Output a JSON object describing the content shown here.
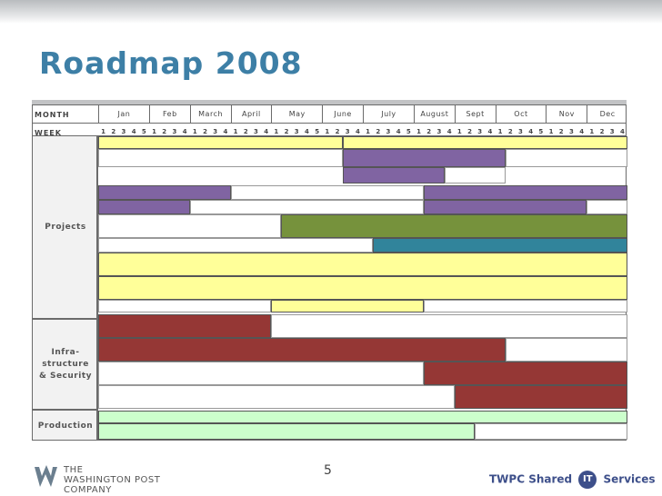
{
  "slide": {
    "title": "Roadmap 2008",
    "page_number": "5"
  },
  "header": {
    "month_label": "MONTH",
    "week_label": "WEEK",
    "months": [
      {
        "name": "Jan",
        "weeks": 5
      },
      {
        "name": "Feb",
        "weeks": 4
      },
      {
        "name": "March",
        "weeks": 4
      },
      {
        "name": "April",
        "weeks": 4
      },
      {
        "name": "May",
        "weeks": 5
      },
      {
        "name": "June",
        "weeks": 4
      },
      {
        "name": "July",
        "weeks": 5
      },
      {
        "name": "August",
        "weeks": 4
      },
      {
        "name": "Sept",
        "weeks": 4
      },
      {
        "name": "Oct",
        "weeks": 5
      },
      {
        "name": "Nov",
        "weeks": 4
      },
      {
        "name": "Dec",
        "weeks": 4
      }
    ]
  },
  "sections": [
    {
      "label": "Projects",
      "rows": 12
    },
    {
      "label": "Infra-\nstructure\n& Security",
      "rows": 6
    },
    {
      "label": "Production",
      "rows": 2
    }
  ],
  "colors": {
    "yellow": "#ffff99",
    "purple": "#8064a2",
    "green": "#76923c",
    "teal": "#31849b",
    "red": "#953735",
    "lightgreen": "#ccffcc",
    "white": "#ffffff"
  },
  "bars": [
    {
      "row": 0,
      "start_week": 1,
      "end_week": 24,
      "color": "yellow"
    },
    {
      "row": 0,
      "start_week": 25,
      "end_week": 52,
      "color": "yellow"
    },
    {
      "row": 1,
      "start_week": 1,
      "end_week": 24,
      "color": "white"
    },
    {
      "row": 1,
      "start_week": 25,
      "end_week": 40,
      "color": "purple"
    },
    {
      "row": 1,
      "start_week": 41,
      "end_week": 52,
      "color": "white"
    },
    {
      "row": 2,
      "start_week": 25,
      "end_week": 34,
      "color": "purple"
    },
    {
      "row": 2,
      "start_week": 35,
      "end_week": 40,
      "color": "white"
    },
    {
      "row": 3,
      "start_week": 1,
      "end_week": 13,
      "color": "purple"
    },
    {
      "row": 3,
      "start_week": 14,
      "end_week": 32,
      "color": "white"
    },
    {
      "row": 3,
      "start_week": 33,
      "end_week": 52,
      "color": "purple"
    },
    {
      "row": 4,
      "start_week": 1,
      "end_week": 9,
      "color": "purple"
    },
    {
      "row": 4,
      "start_week": 10,
      "end_week": 32,
      "color": "white"
    },
    {
      "row": 4,
      "start_week": 33,
      "end_week": 48,
      "color": "purple"
    },
    {
      "row": 4,
      "start_week": 49,
      "end_week": 52,
      "color": "white"
    },
    {
      "row": 5,
      "start_week": 1,
      "end_week": 18,
      "color": "white"
    },
    {
      "row": 5,
      "start_week": 19,
      "end_week": 52,
      "color": "green"
    },
    {
      "row": 6,
      "start_week": 1,
      "end_week": 27,
      "color": "white"
    },
    {
      "row": 6,
      "start_week": 28,
      "end_week": 52,
      "color": "teal"
    },
    {
      "row": 7,
      "start_week": 1,
      "end_week": 52,
      "color": "yellow"
    },
    {
      "row": 8,
      "start_week": 1,
      "end_week": 52,
      "color": "yellow"
    },
    {
      "row": 9,
      "start_week": 1,
      "end_week": 17,
      "color": "white"
    },
    {
      "row": 9,
      "start_week": 18,
      "end_week": 32,
      "color": "yellow"
    },
    {
      "row": 9,
      "start_week": 33,
      "end_week": 52,
      "color": "white"
    },
    {
      "row": 10,
      "start_week": 1,
      "end_week": 17,
      "color": "red"
    },
    {
      "row": 10,
      "start_week": 18,
      "end_week": 52,
      "color": "white"
    },
    {
      "row": 11,
      "start_week": 1,
      "end_week": 40,
      "color": "red"
    },
    {
      "row": 11,
      "start_week": 41,
      "end_week": 52,
      "color": "white"
    },
    {
      "row": 12,
      "start_week": 1,
      "end_week": 32,
      "color": "white"
    },
    {
      "row": 12,
      "start_week": 33,
      "end_week": 52,
      "color": "red"
    },
    {
      "row": 13,
      "start_week": 1,
      "end_week": 35,
      "color": "white"
    },
    {
      "row": 13,
      "start_week": 36,
      "end_week": 52,
      "color": "red"
    },
    {
      "row": 14,
      "start_week": 1,
      "end_week": 52,
      "color": "lightgreen"
    },
    {
      "row": 15,
      "start_week": 1,
      "end_week": 37,
      "color": "lightgreen"
    },
    {
      "row": 15,
      "start_week": 38,
      "end_week": 52,
      "color": "white"
    }
  ],
  "footer": {
    "left_logo_text": "THE\nWASHINGTON POST\nCOMPANY",
    "right_brand_pre": "TWPC Shared",
    "right_brand_it": "IT",
    "right_brand_post": "Services"
  }
}
